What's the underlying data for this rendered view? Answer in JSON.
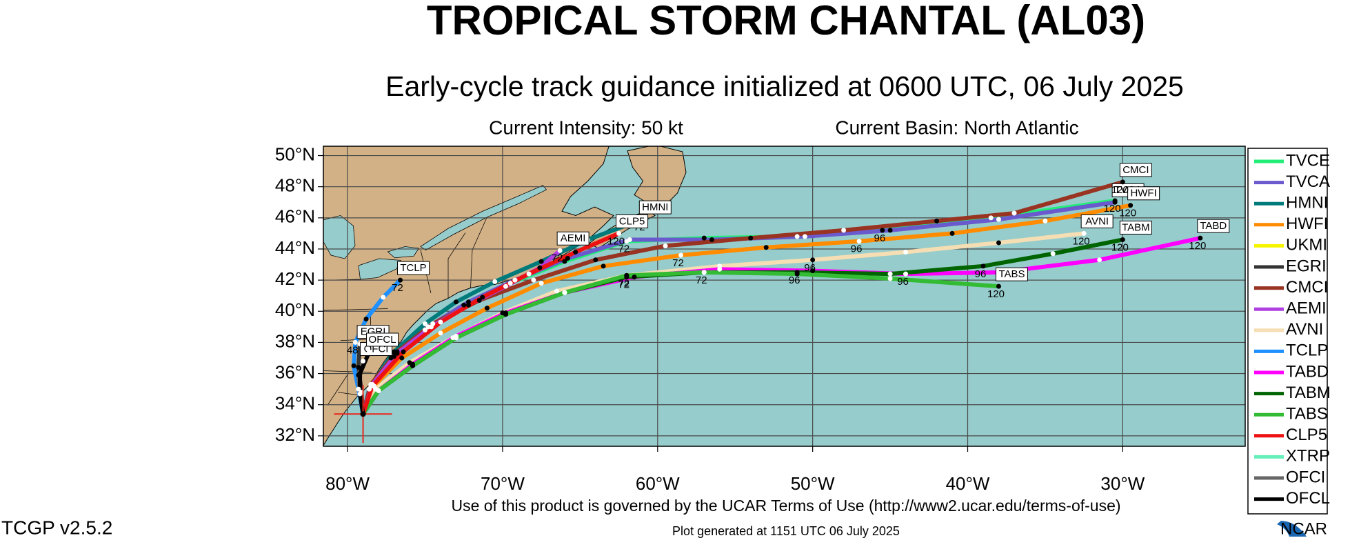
{
  "chart_data": {
    "type": "track-map",
    "title": "TROPICAL STORM CHANTAL (AL03)",
    "subtitle": "Early-cycle track guidance initialized at 0600 UTC, 06 July 2025",
    "annotations": [
      "Current Intensity: 50 kt",
      "Current Basin: North Atlantic"
    ],
    "footer": "Use of this product is governed by the UCAR Terms of Use (http://www2.ucar.edu/terms-of-use)",
    "generated": "Plot generated at 1151 UTC   06 July 2025",
    "version": "TCGP v2.5.2",
    "logo": "NCAR",
    "xlim": [
      -81.56,
      -22.1
    ],
    "ylim": [
      31.33,
      50.6
    ],
    "xticks": [
      {
        "value": -80,
        "label": "80°W"
      },
      {
        "value": -70,
        "label": "70°W"
      },
      {
        "value": -60,
        "label": "60°W"
      },
      {
        "value": -50,
        "label": "50°W"
      },
      {
        "value": -40,
        "label": "40°W"
      },
      {
        "value": -30,
        "label": "30°W"
      }
    ],
    "yticks": [
      {
        "value": 32,
        "label": "32°N"
      },
      {
        "value": 34,
        "label": "34°N"
      },
      {
        "value": 36,
        "label": "36°N"
      },
      {
        "value": 38,
        "label": "38°N"
      },
      {
        "value": 40,
        "label": "40°N"
      },
      {
        "value": 42,
        "label": "42°N"
      },
      {
        "value": 44,
        "label": "44°N"
      },
      {
        "value": 46,
        "label": "46°N"
      },
      {
        "value": 48,
        "label": "48°N"
      },
      {
        "value": 50,
        "label": "50°N"
      }
    ],
    "grid": true,
    "current_position": {
      "x": -79.0,
      "y": 33.4,
      "color": "#e8261c"
    },
    "series": [
      {
        "name": "TVCE",
        "color": "#22ee77",
        "label_box": false,
        "x": [
          -79.0,
          -78.6,
          -77.2,
          -75.0,
          -72.5,
          -69.5,
          -66.0,
          -62.0,
          -57.0,
          -51.0,
          -45.5,
          -38.5,
          -30.5
        ],
        "y": [
          33.4,
          35.0,
          37.0,
          38.8,
          40.4,
          41.8,
          43.2,
          44.5,
          44.7,
          44.8,
          45.2,
          46.0,
          47.1
        ],
        "hour_labels": [
          null,
          null,
          null,
          null,
          null,
          null,
          null,
          72,
          null,
          null,
          96,
          null,
          120
        ]
      },
      {
        "name": "TVCA",
        "color": "#6a5acd",
        "label_box": true,
        "x": [
          -79.0,
          -78.6,
          -77.0,
          -74.8,
          -72.2,
          -69.2,
          -65.8,
          -61.8,
          -56.5,
          -50.5,
          -45.0,
          -38.0,
          -30.5
        ],
        "y": [
          33.4,
          35.0,
          37.1,
          39.0,
          40.6,
          42.0,
          43.4,
          44.6,
          44.6,
          44.8,
          45.2,
          45.9,
          47.0
        ],
        "hour_labels": [
          null,
          null,
          null,
          null,
          null,
          null,
          null,
          null,
          null,
          null,
          null,
          null,
          null
        ]
      },
      {
        "name": "HMNI",
        "color": "#007b7b",
        "label_box": true,
        "x": [
          -79.0,
          -78.5,
          -77.0,
          -75.0,
          -73.0,
          -70.5,
          -67.5,
          -64.5,
          -61.0
        ],
        "y": [
          33.4,
          35.2,
          37.4,
          39.2,
          40.6,
          41.9,
          43.2,
          44.6,
          45.9
        ],
        "hour_labels": [
          null,
          null,
          null,
          null,
          null,
          null,
          null,
          null,
          72
        ]
      },
      {
        "name": "HWFI",
        "color": "#ff8c00",
        "label_box": true,
        "x": [
          -79.0,
          -78.3,
          -76.5,
          -74.0,
          -71.0,
          -67.5,
          -63.5,
          -58.5,
          -53.0,
          -47.0,
          -41.0,
          -35.0,
          -29.5
        ],
        "y": [
          33.4,
          35.2,
          37.0,
          38.6,
          40.2,
          41.8,
          42.9,
          43.6,
          44.1,
          44.5,
          45.0,
          45.8,
          46.8
        ],
        "hour_labels": [
          null,
          null,
          null,
          null,
          null,
          null,
          null,
          72,
          null,
          96,
          null,
          null,
          120
        ]
      },
      {
        "name": "UKMI",
        "color": "#f5f500",
        "label_box": false,
        "x": [],
        "y": [],
        "hour_labels": []
      },
      {
        "name": "EGRI",
        "color": "#333333",
        "label_box": true,
        "x": [
          -79.0,
          -79.1,
          -79.3,
          -79.2
        ],
        "y": [
          33.4,
          34.8,
          36.4,
          37.9
        ],
        "hour_labels": [
          null,
          null,
          null,
          null
        ]
      },
      {
        "name": "CMCI",
        "color": "#993322",
        "label_box": true,
        "x": [
          -79.0,
          -78.5,
          -76.8,
          -74.5,
          -71.5,
          -68.0,
          -64.0,
          -59.5,
          -54.0,
          -48.0,
          -42.0,
          -37.0,
          -30.0
        ],
        "y": [
          33.4,
          35.3,
          37.4,
          39.2,
          40.7,
          42.0,
          43.3,
          44.2,
          44.7,
          45.2,
          45.8,
          46.3,
          48.3
        ],
        "hour_labels": [
          null,
          null,
          null,
          null,
          null,
          null,
          null,
          null,
          null,
          null,
          null,
          null,
          120
        ]
      },
      {
        "name": "AEMI",
        "color": "#b040e0",
        "label_box": true,
        "x": [
          -79.0,
          -78.4,
          -76.8,
          -74.6,
          -72.2,
          -69.8,
          -67.6,
          -66.3
        ],
        "y": [
          33.4,
          35.3,
          37.3,
          39.0,
          40.4,
          41.6,
          42.8,
          43.9
        ],
        "hour_labels": [
          null,
          null,
          null,
          null,
          null,
          null,
          null,
          72
        ]
      },
      {
        "name": "AVNI",
        "color": "#f5deb3",
        "label_box": true,
        "x": [
          -79.0,
          -78.2,
          -76.0,
          -73.2,
          -70.0,
          -66.5,
          -62.0,
          -56.0,
          -50.0,
          -44.0,
          -38.0,
          -32.5
        ],
        "y": [
          33.4,
          35.0,
          36.7,
          38.3,
          39.9,
          41.3,
          42.3,
          42.9,
          43.3,
          43.8,
          44.4,
          45.0
        ],
        "hour_labels": [
          null,
          null,
          null,
          null,
          null,
          null,
          72,
          null,
          96,
          null,
          null,
          120
        ]
      },
      {
        "name": "TCLP",
        "color": "#1e90ff",
        "label_box": true,
        "x": [
          -79.0,
          -79.3,
          -79.6,
          -79.5,
          -78.8,
          -77.7,
          -76.6
        ],
        "y": [
          33.4,
          35.0,
          36.5,
          38.0,
          39.5,
          40.9,
          42.0
        ],
        "hour_labels": [
          null,
          null,
          null,
          48,
          null,
          null,
          72
        ]
      },
      {
        "name": "TABD",
        "color": "#ff00ff",
        "label_box": true,
        "x": [
          -79.0,
          -78.0,
          -75.8,
          -73.0,
          -69.8,
          -66.0,
          -61.5,
          -56.0,
          -50.0,
          -44.0,
          -38.0,
          -31.5,
          -25.0
        ],
        "y": [
          33.4,
          34.9,
          36.6,
          38.4,
          39.9,
          41.2,
          42.2,
          42.7,
          42.6,
          42.4,
          42.5,
          43.3,
          44.7
        ],
        "hour_labels": [
          null,
          null,
          null,
          null,
          null,
          null,
          null,
          null,
          null,
          96,
          null,
          null,
          120
        ]
      },
      {
        "name": "TABM",
        "color": "#006400",
        "label_box": true,
        "x": [
          -79.0,
          -78.0,
          -75.8,
          -73.0,
          -69.8,
          -66.0,
          -62.0,
          -57.0,
          -51.0,
          -45.0,
          -39.0,
          -34.5,
          -30.0
        ],
        "y": [
          33.4,
          34.9,
          36.5,
          38.3,
          39.8,
          41.2,
          42.2,
          42.5,
          42.5,
          42.4,
          42.9,
          43.7,
          44.6
        ],
        "hour_labels": [
          null,
          null,
          null,
          null,
          null,
          null,
          72,
          72,
          96,
          null,
          96,
          null,
          120
        ]
      },
      {
        "name": "TABS",
        "color": "#33bb33",
        "label_box": true,
        "x": [
          -79.0,
          -78.0,
          -75.8,
          -73.0,
          -69.8,
          -66.0,
          -62.0,
          -57.0,
          -51.0,
          -45.0,
          -38.0
        ],
        "y": [
          33.4,
          34.9,
          36.5,
          38.3,
          39.8,
          41.2,
          42.3,
          42.5,
          42.4,
          42.1,
          41.6
        ],
        "hour_labels": [
          null,
          null,
          null,
          null,
          null,
          null,
          null,
          null,
          null,
          null,
          120
        ]
      },
      {
        "name": "CLP5",
        "color": "#ee1111",
        "label_box": true,
        "x": [
          -79.0,
          -78.4,
          -76.4,
          -74.0,
          -71.3,
          -68.3,
          -65.3,
          -62.5
        ],
        "y": [
          33.4,
          35.2,
          37.4,
          39.3,
          40.9,
          42.4,
          43.8,
          45.0
        ],
        "hour_labels": [
          null,
          null,
          null,
          null,
          null,
          null,
          null,
          120
        ]
      },
      {
        "name": "XTRP",
        "color": "#66eebb",
        "label_box": false,
        "x": [],
        "y": [],
        "hour_labels": []
      },
      {
        "name": "OFCI",
        "color": "#666666",
        "label_box": true,
        "x": [
          -79.0,
          -79.2,
          -79.3,
          -79.0
        ],
        "y": [
          33.4,
          34.7,
          35.9,
          36.8
        ],
        "hour_labels": [
          null,
          null,
          null,
          null
        ]
      },
      {
        "name": "OFCL",
        "color": "#000000",
        "label_box": true,
        "x": [
          -79.0,
          -79.2,
          -79.2,
          -78.6
        ],
        "y": [
          33.4,
          34.7,
          36.0,
          37.4
        ],
        "hour_labels": [
          null,
          null,
          null,
          null
        ]
      }
    ]
  }
}
